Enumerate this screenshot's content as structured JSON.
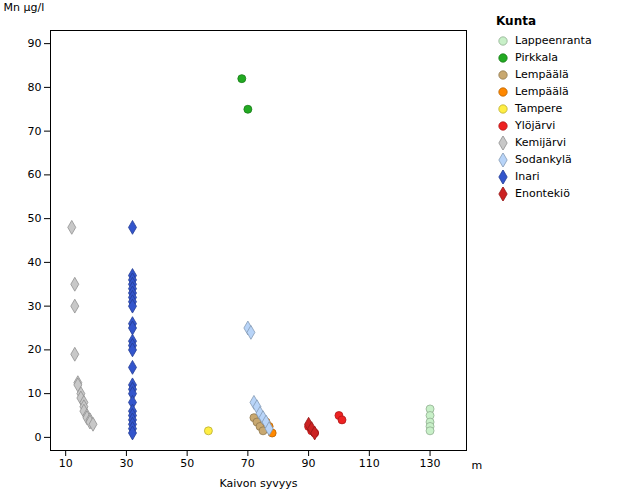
{
  "chart_data": {
    "type": "scatter",
    "xlabel": "Kaivon syvyys",
    "ylabel": "Mn µg/l",
    "annotations": [
      "m"
    ],
    "legend_title": "Kunta",
    "legend": "upper right",
    "grid": false,
    "xlim": [
      5,
      142
    ],
    "ylim": [
      -3,
      93
    ],
    "xticks": [
      10,
      30,
      50,
      70,
      90,
      110,
      130
    ],
    "yticks": [
      0,
      10,
      20,
      30,
      40,
      50,
      60,
      70,
      80,
      90
    ],
    "series": [
      {
        "name": "Lappeenranta",
        "marker": "circle",
        "color": "#c8f0c8",
        "x": [
          130,
          130,
          130,
          130,
          130
        ],
        "values": [
          6.5,
          5.0,
          3.5,
          2.5,
          1.5
        ]
      },
      {
        "name": "Pirkkala",
        "marker": "circle",
        "color": "#22aa22",
        "x": [
          68,
          70
        ],
        "values": [
          82,
          75
        ]
      },
      {
        "name": "Lempäälä",
        "marker": "circle",
        "color": "#c8a870",
        "x": [
          72,
          73,
          74,
          75
        ],
        "values": [
          4.5,
          3.5,
          2.5,
          1.5
        ]
      },
      {
        "name": "Lempäälä",
        "marker": "circle",
        "color": "#ff8800",
        "x": [
          76,
          77,
          78
        ],
        "values": [
          3.5,
          2.5,
          1.0
        ]
      },
      {
        "name": "Tampere",
        "marker": "circle",
        "color": "#ffee44",
        "x": [
          57
        ],
        "values": [
          1.5
        ]
      },
      {
        "name": "Ylöjärvi",
        "marker": "circle",
        "color": "#ee2222",
        "x": [
          90,
          91,
          92,
          100,
          101
        ],
        "values": [
          2.5,
          1.5,
          1.0,
          5.0,
          4.0
        ]
      },
      {
        "name": "Kemijärvi",
        "marker": "diamond",
        "color": "#c8c8c8",
        "x": [
          12,
          13,
          13,
          13,
          14,
          14,
          15,
          15,
          16,
          16,
          16,
          17,
          17,
          18,
          18,
          19
        ],
        "values": [
          48,
          35,
          30,
          19,
          12.5,
          12.0,
          10,
          9,
          8,
          7,
          6,
          5,
          4.5,
          4.0,
          3.5,
          3.0
        ]
      },
      {
        "name": "Sodankylä",
        "marker": "diamond",
        "color": "#b8d4f8",
        "x": [
          70,
          71,
          72,
          73,
          74,
          75,
          76,
          77
        ],
        "values": [
          25,
          24,
          8,
          7,
          5.5,
          4.5,
          3.5,
          2.0
        ]
      },
      {
        "name": "Inari",
        "marker": "diamond",
        "color": "#3355cc",
        "x": [
          32,
          32,
          32,
          32,
          32,
          32,
          32,
          32,
          32,
          32,
          32,
          32,
          32,
          32,
          32,
          32,
          32,
          32,
          32,
          32,
          32,
          32,
          32,
          32,
          32
        ],
        "values": [
          48,
          37,
          36,
          35,
          34,
          33,
          32,
          31,
          30,
          26,
          25,
          22,
          21,
          20,
          16,
          12,
          11,
          10,
          8,
          6,
          5,
          4,
          3,
          2,
          1
        ]
      },
      {
        "name": "Enontekiö",
        "marker": "diamond",
        "color": "#cc2222",
        "x": [
          90,
          91,
          92
        ],
        "values": [
          3.0,
          2.0,
          1.0
        ]
      }
    ]
  }
}
